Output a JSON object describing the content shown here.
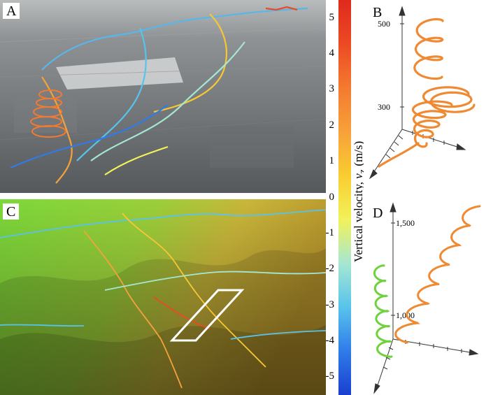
{
  "panels": {
    "a": {
      "label": "A"
    },
    "b": {
      "label": "B",
      "z_ticks": [
        "500",
        "300"
      ]
    },
    "c": {
      "label": "C"
    },
    "d": {
      "label": "D",
      "z_ticks": [
        "1,500",
        "1,000"
      ]
    }
  },
  "colorbar": {
    "title": "Vertical velocity, ",
    "symbol": "v",
    "subscript": "z",
    "unit": " (m/s)",
    "ticks": [
      "5",
      "4",
      "3",
      "2",
      "1",
      "0",
      "-1",
      "-2",
      "-3",
      "-4",
      "-5"
    ],
    "range": [
      -5.5,
      5.5
    ],
    "colors": [
      "#1a3fcf",
      "#2f7bea",
      "#58c3ec",
      "#a6e7d2",
      "#f2f25a",
      "#f9cd30",
      "#f7a13a",
      "#f47a2f",
      "#ec4a24",
      "#e02a1c"
    ]
  },
  "colors": {
    "helix_orange": "#f08a32",
    "helix_green": "#6fd23d",
    "selection_box": "#ffffff"
  }
}
